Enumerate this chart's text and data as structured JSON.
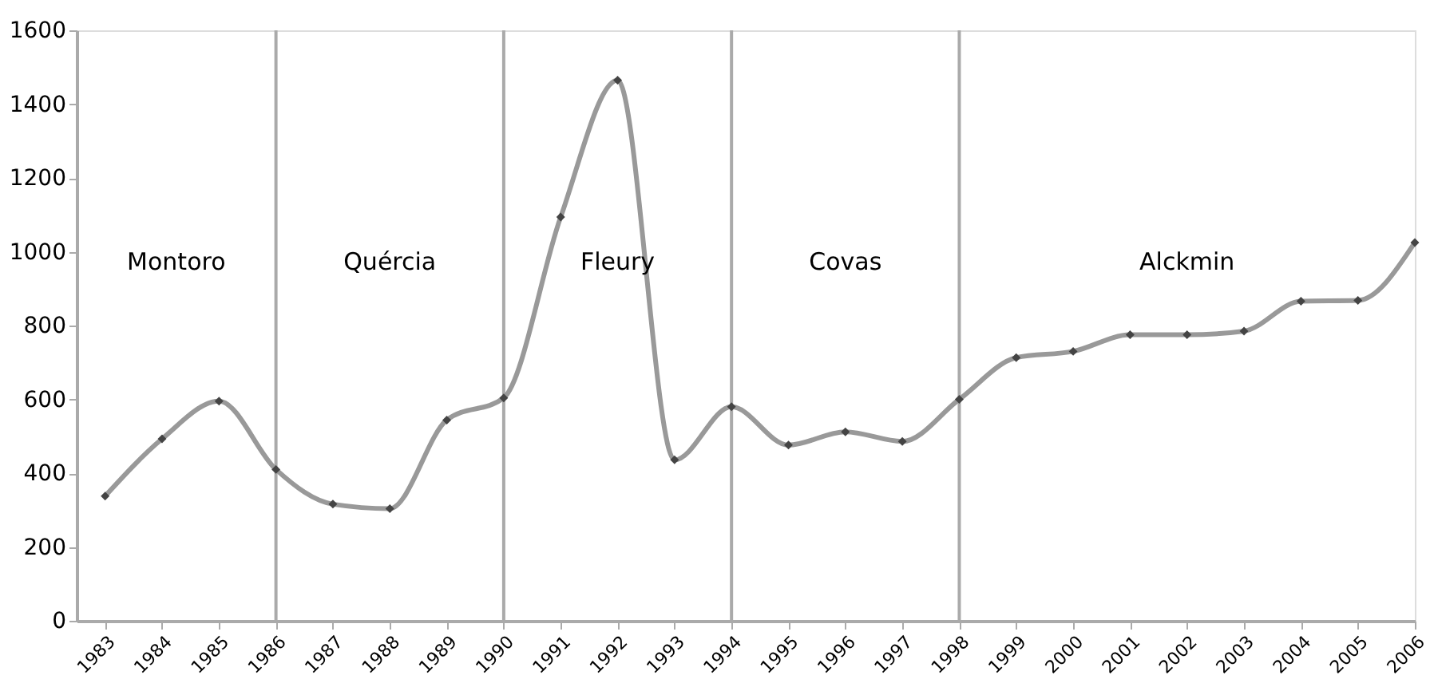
{
  "chart_data": {
    "type": "line",
    "x": [
      1983,
      1984,
      1985,
      1986,
      1987,
      1988,
      1989,
      1990,
      1991,
      1992,
      1993,
      1994,
      1995,
      1996,
      1997,
      1998,
      1999,
      2000,
      2001,
      2002,
      2003,
      2004,
      2005,
      2006
    ],
    "series": [
      {
        "color": "#999999",
        "values": [
          338,
          493,
          595,
          410,
          316,
          304,
          544,
          604,
          1094,
          1465,
          436,
          580,
          476,
          512,
          486,
          600,
          713,
          730,
          775,
          775,
          785,
          866,
          868,
          1025
        ]
      }
    ],
    "marker": "diamond",
    "xlim": [
      1982.5,
      2006
    ],
    "xticks": [
      1983,
      1984,
      1985,
      1986,
      1987,
      1988,
      1989,
      1990,
      1991,
      1992,
      1993,
      1994,
      1995,
      1996,
      1997,
      1998,
      1999,
      2000,
      2001,
      2002,
      2003,
      2004,
      2005,
      2006
    ],
    "ylim": [
      0,
      1600
    ],
    "yticks": [
      0,
      200,
      400,
      600,
      800,
      1000,
      1200,
      1400,
      1600
    ],
    "ref_lines": [
      {
        "axis": "x",
        "value": 1986,
        "color": "#aaaaaa"
      },
      {
        "axis": "x",
        "value": 1990,
        "color": "#aaaaaa"
      },
      {
        "axis": "x",
        "value": 1994,
        "color": "#aaaaaa"
      },
      {
        "axis": "x",
        "value": 1998,
        "color": "#aaaaaa"
      }
    ],
    "annotations": [
      "Montoro",
      "Quércia",
      "Fleury",
      "Covas",
      "Alckmin"
    ]
  }
}
